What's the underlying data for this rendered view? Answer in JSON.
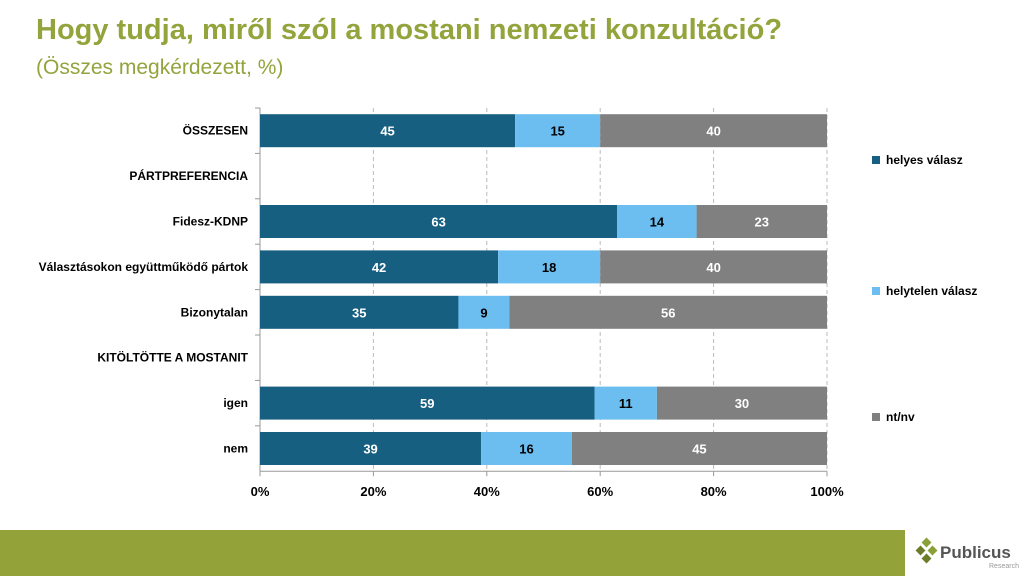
{
  "title": "Hogy tudja, miről szól a mostani nemzeti konzultáció?",
  "subtitle": "(Összes megkérdezett, %)",
  "logo": {
    "name": "Publicus",
    "tagline": "Research"
  },
  "chart_data": {
    "type": "bar",
    "orientation": "horizontal-stacked-100",
    "categories": [
      "ÖSSZESEN",
      "PÁRTPREFERENCIA",
      "Fidesz-KDNP",
      "Választásokon együttműködő pártok",
      "Bizonytalan",
      "KITÖLTÖTTE A MOSTANIT",
      "igen",
      "nem"
    ],
    "series": [
      {
        "name": "helyes válasz",
        "color": "#175f80",
        "values": [
          45,
          null,
          63,
          42,
          35,
          null,
          59,
          39
        ]
      },
      {
        "name": "helytelen válasz",
        "color": "#6cbdf0",
        "values": [
          15,
          null,
          14,
          18,
          9,
          null,
          11,
          16
        ]
      },
      {
        "name": "nt/nv",
        "color": "#808080",
        "values": [
          40,
          null,
          23,
          40,
          56,
          null,
          30,
          45
        ]
      }
    ],
    "xlim": [
      0,
      100
    ],
    "xticks": [
      "0%",
      "20%",
      "40%",
      "60%",
      "80%",
      "100%"
    ],
    "grid": true,
    "legend": "right"
  }
}
